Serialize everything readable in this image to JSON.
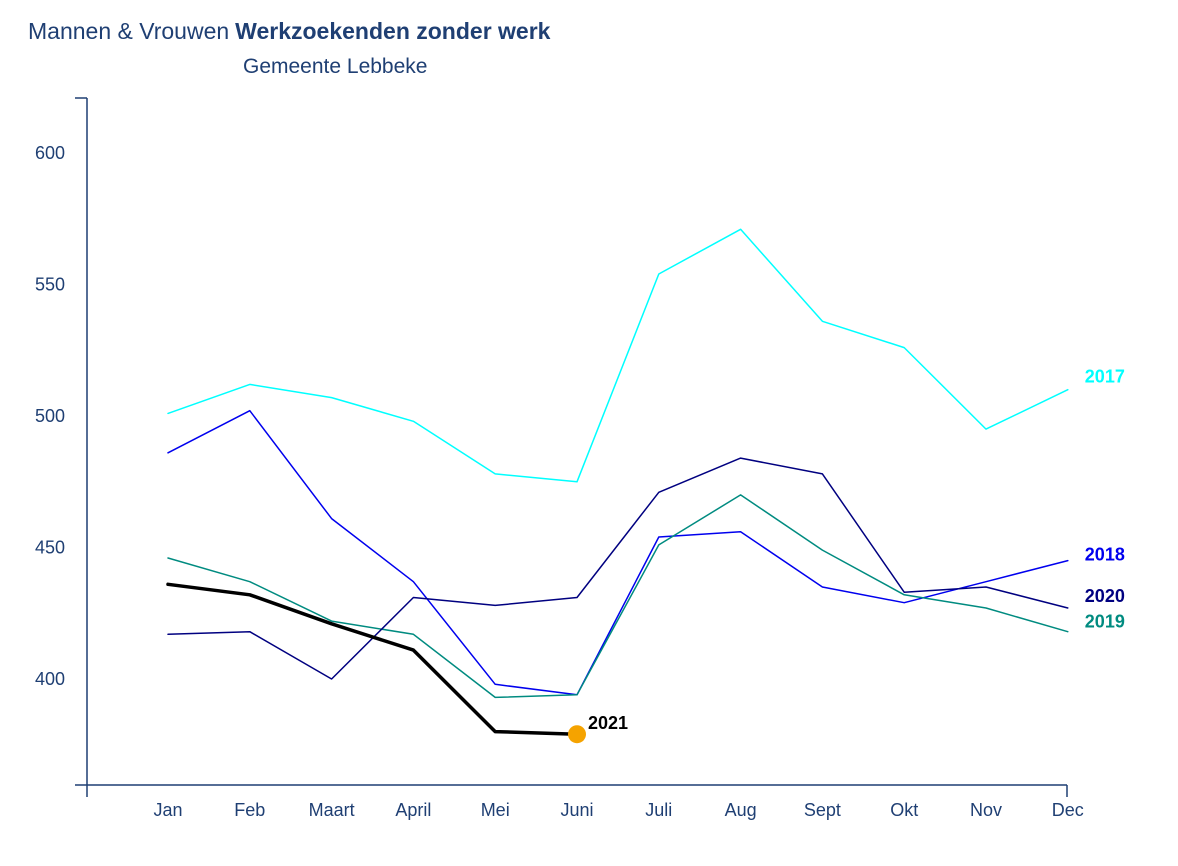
{
  "header": {
    "title_prefix": "Mannen & Vrouwen",
    "title_main": "Werkzoekenden zonder werk",
    "subtitle": "Gemeente Lebbeke"
  },
  "chart_data": {
    "type": "line",
    "title": "Werkzoekenden zonder werk",
    "subtitle": "Gemeente Lebbeke",
    "categories": [
      "Jan",
      "Feb",
      "Maart",
      "April",
      "Mei",
      "Juni",
      "Juli",
      "Aug",
      "Sept",
      "Okt",
      "Nov",
      "Dec"
    ],
    "yticks": [
      400,
      450,
      500,
      550,
      600
    ],
    "ylim": [
      360,
      620
    ],
    "grid": false,
    "legend": "inline-labels-right",
    "series": [
      {
        "name": "2017",
        "color": "#00ffff",
        "width": 1.5,
        "values": [
          501,
          512,
          507,
          498,
          478,
          475,
          554,
          571,
          536,
          526,
          495,
          510
        ]
      },
      {
        "name": "2018",
        "color": "#0000ee",
        "width": 1.5,
        "values": [
          486,
          502,
          461,
          437,
          398,
          394,
          454,
          456,
          435,
          429,
          437,
          445
        ]
      },
      {
        "name": "2019",
        "color": "#008b80",
        "width": 1.5,
        "values": [
          446,
          437,
          422,
          417,
          393,
          394,
          451,
          470,
          449,
          432,
          427,
          418
        ]
      },
      {
        "name": "2020",
        "color": "#000080",
        "width": 1.5,
        "values": [
          417,
          418,
          400,
          431,
          428,
          431,
          471,
          484,
          478,
          433,
          435,
          427
        ]
      },
      {
        "name": "2021",
        "color": "#000000",
        "width": 3.5,
        "values": [
          436,
          432,
          421,
          411,
          380,
          379,
          null,
          null,
          null,
          null,
          null,
          null
        ],
        "end_marker_color": "#f5a300"
      }
    ]
  }
}
